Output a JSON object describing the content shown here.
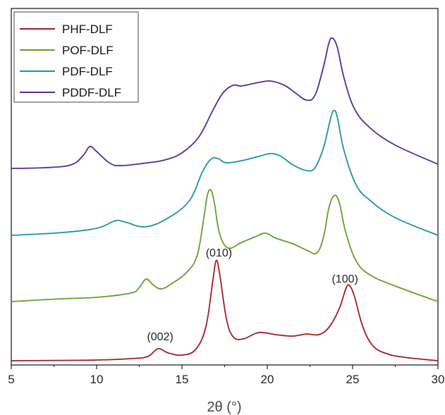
{
  "chart_data": {
    "type": "line",
    "title": "",
    "xlabel": "2θ (°)",
    "ylabel": "",
    "xlim": [
      5,
      30
    ],
    "xticks": [
      5,
      10,
      15,
      20,
      25,
      30
    ],
    "yaxis_ticks": false,
    "grid": false,
    "legend_position": "top-left",
    "series": [
      {
        "name": "PHF-DLF",
        "color": "#a11d21",
        "points": [
          [
            5,
            0
          ],
          [
            8,
            0.5
          ],
          [
            10,
            1
          ],
          [
            12,
            3
          ],
          [
            13,
            6
          ],
          [
            13.6,
            17
          ],
          [
            14.2,
            11
          ],
          [
            15,
            8
          ],
          [
            15.8,
            16
          ],
          [
            16.4,
            48
          ],
          [
            16.8,
            112
          ],
          [
            17.0,
            142
          ],
          [
            17.2,
            125
          ],
          [
            17.6,
            60
          ],
          [
            18,
            34
          ],
          [
            18.6,
            31
          ],
          [
            19.5,
            40
          ],
          [
            20.5,
            37
          ],
          [
            21.5,
            35
          ],
          [
            22.3,
            38
          ],
          [
            23,
            37
          ],
          [
            23.6,
            47
          ],
          [
            24.2,
            73
          ],
          [
            24.6,
            102
          ],
          [
            24.8,
            107
          ],
          [
            25.1,
            92
          ],
          [
            25.6,
            48
          ],
          [
            26.2,
            21
          ],
          [
            27,
            10
          ],
          [
            28,
            5
          ],
          [
            30,
            0
          ]
        ]
      },
      {
        "name": "POF-DLF",
        "color": "#62a02b",
        "points": [
          [
            5,
            0
          ],
          [
            8,
            4
          ],
          [
            10,
            6
          ],
          [
            12,
            12
          ],
          [
            12.5,
            20
          ],
          [
            12.9,
            32
          ],
          [
            13.3,
            24
          ],
          [
            13.8,
            18
          ],
          [
            14.5,
            27
          ],
          [
            15.3,
            42
          ],
          [
            15.9,
            66
          ],
          [
            16.3,
            122
          ],
          [
            16.5,
            152
          ],
          [
            16.7,
            158
          ],
          [
            16.9,
            140
          ],
          [
            17.2,
            97
          ],
          [
            17.7,
            76
          ],
          [
            18.5,
            84
          ],
          [
            19.3,
            92
          ],
          [
            19.9,
            97
          ],
          [
            20.5,
            90
          ],
          [
            21.5,
            82
          ],
          [
            22.3,
            73
          ],
          [
            22.9,
            69
          ],
          [
            23.3,
            92
          ],
          [
            23.6,
            132
          ],
          [
            23.9,
            150
          ],
          [
            24.2,
            142
          ],
          [
            24.6,
            98
          ],
          [
            25.2,
            58
          ],
          [
            26,
            38
          ],
          [
            27.5,
            22
          ],
          [
            30,
            0
          ]
        ]
      },
      {
        "name": "PDF-DLF",
        "color": "#1b9499",
        "points": [
          [
            5,
            0
          ],
          [
            8,
            4
          ],
          [
            10,
            10
          ],
          [
            11,
            20
          ],
          [
            11.3,
            21
          ],
          [
            11.8,
            18
          ],
          [
            12.8,
            12
          ],
          [
            14,
            22
          ],
          [
            15.4,
            48
          ],
          [
            16.2,
            90
          ],
          [
            16.7,
            108
          ],
          [
            17.1,
            109
          ],
          [
            17.6,
            103
          ],
          [
            18.5,
            106
          ],
          [
            19.5,
            112
          ],
          [
            20.2,
            116
          ],
          [
            20.8,
            112
          ],
          [
            21.5,
            100
          ],
          [
            22.3,
            92
          ],
          [
            22.8,
            96
          ],
          [
            23.3,
            125
          ],
          [
            23.7,
            165
          ],
          [
            23.9,
            177
          ],
          [
            24.1,
            168
          ],
          [
            24.5,
            120
          ],
          [
            25.2,
            72
          ],
          [
            26,
            50
          ],
          [
            27.5,
            25
          ],
          [
            30,
            0
          ]
        ]
      },
      {
        "name": "PDDF-DLF",
        "color": "#522c9a",
        "points": [
          [
            5,
            0
          ],
          [
            7,
            1
          ],
          [
            8.5,
            5
          ],
          [
            9.2,
            18
          ],
          [
            9.6,
            31
          ],
          [
            10,
            24
          ],
          [
            10.8,
            7
          ],
          [
            11.5,
            4
          ],
          [
            13,
            8
          ],
          [
            14,
            12
          ],
          [
            15,
            22
          ],
          [
            16,
            45
          ],
          [
            16.8,
            82
          ],
          [
            17.4,
            107
          ],
          [
            18,
            118
          ],
          [
            18.5,
            117
          ],
          [
            19.5,
            122
          ],
          [
            20.2,
            124
          ],
          [
            21,
            118
          ],
          [
            21.6,
            108
          ],
          [
            22.3,
            97
          ],
          [
            22.8,
            104
          ],
          [
            23.3,
            145
          ],
          [
            23.6,
            177
          ],
          [
            23.8,
            185
          ],
          [
            24.1,
            172
          ],
          [
            24.5,
            128
          ],
          [
            25.1,
            85
          ],
          [
            26,
            58
          ],
          [
            27.5,
            33
          ],
          [
            30,
            6
          ]
        ]
      }
    ],
    "annotations": [
      {
        "text": "(002)",
        "x": 13.6,
        "series": "PHF-DLF"
      },
      {
        "text": "(010)",
        "x": 17.0,
        "series": "PHF-DLF"
      },
      {
        "text": "(100)",
        "x": 24.8,
        "series": "PHF-DLF"
      }
    ]
  }
}
